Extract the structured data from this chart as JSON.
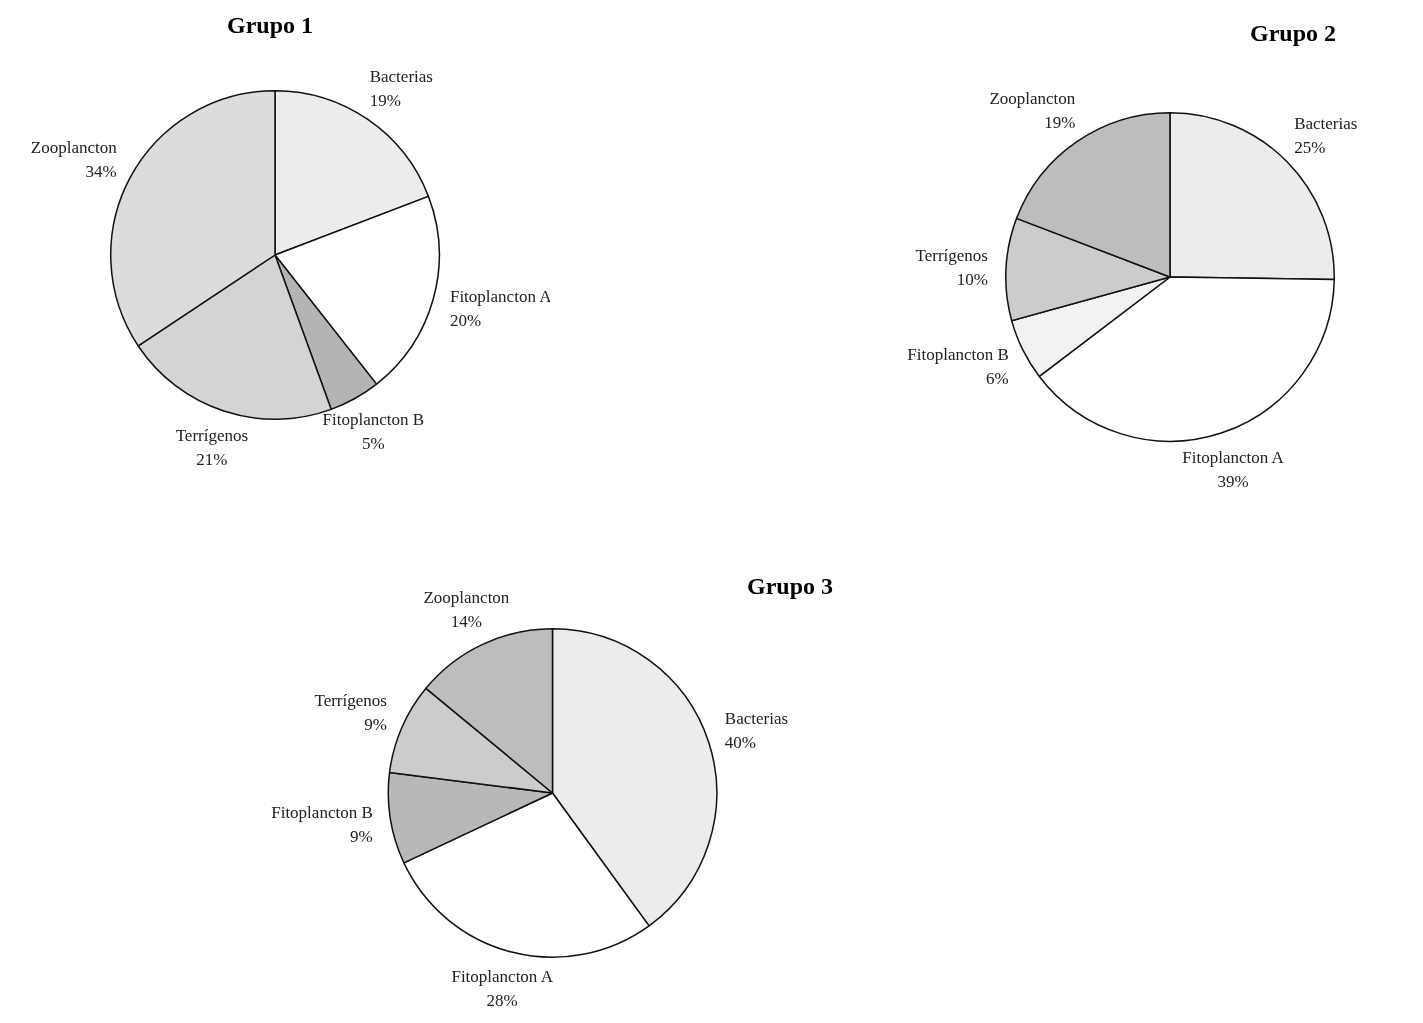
{
  "chart_data": [
    {
      "type": "pie",
      "title": "Grupo 1",
      "categories": [
        "Bacterias",
        "Fitoplancton A",
        "Fitoplancton B",
        "Terrígenos",
        "Zooplancton"
      ],
      "values": [
        19,
        20,
        5,
        21,
        34
      ],
      "value_labels": [
        "19%",
        "20%",
        "5%",
        "21%",
        "34%"
      ],
      "colors": [
        "#ececec",
        "#ffffff",
        "#b4b4b4",
        "#d4d4d4",
        "#dcdcdc"
      ]
    },
    {
      "type": "pie",
      "title": "Grupo 2",
      "categories": [
        "Bacterias",
        "Fitoplancton A",
        "Fitoplancton B",
        "Terrígenos",
        "Zooplancton"
      ],
      "values": [
        25,
        39,
        6,
        10,
        19
      ],
      "value_labels": [
        "25%",
        "39%",
        "6%",
        "10%",
        "19%"
      ],
      "colors": [
        "#ececec",
        "#ffffff",
        "#f2f2f2",
        "#cccccc",
        "#bdbdbd"
      ]
    },
    {
      "type": "pie",
      "title": "Grupo 3",
      "categories": [
        "Bacterias",
        "Fitoplancton A",
        "Fitoplancton B",
        "Terrígenos",
        "Zooplancton"
      ],
      "values": [
        40,
        28,
        9,
        9,
        14
      ],
      "value_labels": [
        "40%",
        "28%",
        "9%",
        "9%",
        "14%"
      ],
      "colors": [
        "#ececec",
        "#ffffff",
        "#b8b8b8",
        "#cccccc",
        "#bdbdbd"
      ]
    }
  ]
}
